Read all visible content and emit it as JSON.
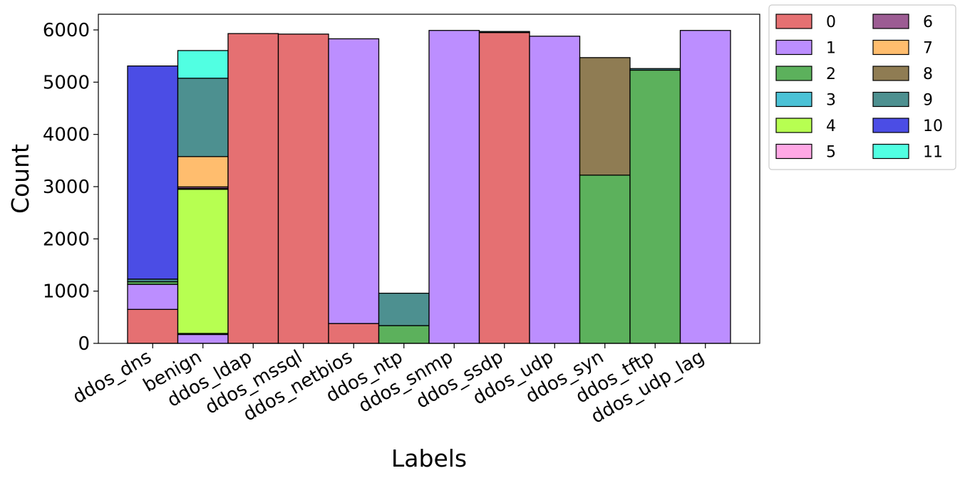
{
  "chart_data": {
    "type": "bar",
    "stacked": true,
    "xlabel": "Labels",
    "ylabel": "Count",
    "ylim": [
      0,
      6300
    ],
    "yticks": [
      0,
      1000,
      2000,
      3000,
      4000,
      5000,
      6000
    ],
    "categories": [
      "ddos_dns",
      "benign",
      "ddos_ldap",
      "ddos_mssql",
      "ddos_netbios",
      "ddos_ntp",
      "ddos_snmp",
      "ddos_ssdp",
      "ddos_udp",
      "ddos_syn",
      "ddos_tftp",
      "ddos_udp_lag"
    ],
    "series": [
      {
        "name": "0",
        "color": "#e15759",
        "values": [
          650,
          0,
          5930,
          5920,
          380,
          0,
          0,
          5950,
          0,
          0,
          0,
          0
        ]
      },
      {
        "name": "1",
        "color": "#b07aff",
        "values": [
          480,
          170,
          0,
          0,
          5450,
          0,
          5990,
          0,
          5880,
          0,
          0,
          5990
        ]
      },
      {
        "name": "2",
        "color": "#3fa33f",
        "values": [
          50,
          20,
          0,
          0,
          0,
          340,
          0,
          0,
          0,
          3220,
          5230,
          0
        ]
      },
      {
        "name": "3",
        "color": "#2bb7cf",
        "values": [
          0,
          0,
          0,
          0,
          0,
          0,
          0,
          0,
          0,
          0,
          0,
          0
        ]
      },
      {
        "name": "4",
        "color": "#aaff33",
        "values": [
          0,
          2760,
          0,
          0,
          0,
          0,
          0,
          0,
          0,
          0,
          0,
          0
        ]
      },
      {
        "name": "5",
        "color": "#ff99e0",
        "values": [
          0,
          15,
          0,
          0,
          0,
          0,
          0,
          0,
          0,
          0,
          0,
          0
        ]
      },
      {
        "name": "6",
        "color": "#8b3f80",
        "values": [
          0,
          30,
          0,
          0,
          0,
          0,
          0,
          0,
          0,
          0,
          0,
          0
        ]
      },
      {
        "name": "7",
        "color": "#ffb255",
        "values": [
          0,
          580,
          0,
          0,
          0,
          0,
          0,
          0,
          0,
          0,
          0,
          0
        ]
      },
      {
        "name": "8",
        "color": "#7b6535",
        "values": [
          0,
          0,
          0,
          0,
          0,
          0,
          0,
          0,
          0,
          2250,
          0,
          0
        ]
      },
      {
        "name": "9",
        "color": "#2e7d7d",
        "values": [
          50,
          1500,
          0,
          0,
          0,
          620,
          0,
          20,
          0,
          0,
          30,
          0
        ]
      },
      {
        "name": "10",
        "color": "#2b2ee0",
        "values": [
          4080,
          0,
          0,
          0,
          0,
          0,
          0,
          0,
          0,
          0,
          0,
          0
        ]
      },
      {
        "name": "11",
        "color": "#33ffdd",
        "values": [
          0,
          530,
          0,
          0,
          0,
          0,
          0,
          0,
          0,
          0,
          0,
          0
        ]
      }
    ],
    "legend": {
      "placement": "outside-top-right",
      "columns": 2
    }
  }
}
